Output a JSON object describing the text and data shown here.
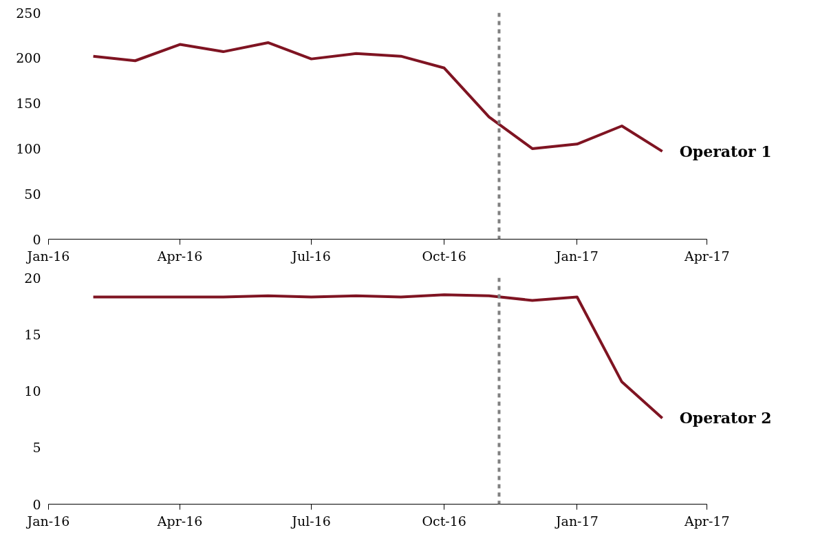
{
  "chart_data": [
    {
      "type": "line",
      "x": [
        "2016-02",
        "2016-03",
        "2016-04",
        "2016-05",
        "2016-06",
        "2016-07",
        "2016-08",
        "2016-09",
        "2016-10",
        "2016-11",
        "2016-12",
        "2017-01",
        "2017-02",
        "2017-03"
      ],
      "series": [
        {
          "name": "Operator 1",
          "color": "#7f1422",
          "values": [
            202,
            197,
            215,
            207,
            217,
            199,
            205,
            202,
            189,
            135,
            100,
            105,
            125,
            97
          ]
        }
      ],
      "xlim": [
        "2016-01-01",
        "2017-04-01"
      ],
      "xticks": [
        {
          "value": "2016-01-01",
          "label": "Jan-16"
        },
        {
          "value": "2016-04-01",
          "label": "Apr-16"
        },
        {
          "value": "2016-07-01",
          "label": "Jul-16"
        },
        {
          "value": "2016-10-01",
          "label": "Oct-16"
        },
        {
          "value": "2017-01-01",
          "label": "Jan-17"
        },
        {
          "value": "2017-04-01",
          "label": "Apr-17"
        }
      ],
      "ylim": [
        0,
        250
      ],
      "yticks": [
        0,
        50,
        100,
        150,
        200,
        250
      ],
      "ref_lines": [
        {
          "axis": "x",
          "value": "2016-11-08",
          "color": "#808080",
          "line_style": "dashed"
        }
      ],
      "grid": false,
      "line_style": "solid",
      "marker": "none"
    },
    {
      "type": "line",
      "x": [
        "2016-02",
        "2016-03",
        "2016-04",
        "2016-05",
        "2016-06",
        "2016-07",
        "2016-08",
        "2016-09",
        "2016-10",
        "2016-11",
        "2016-12",
        "2017-01",
        "2017-02",
        "2017-03"
      ],
      "series": [
        {
          "name": "Operator 2",
          "color": "#7f1422",
          "values": [
            18.3,
            18.3,
            18.3,
            18.3,
            18.4,
            18.3,
            18.4,
            18.3,
            18.5,
            18.4,
            18.0,
            18.3,
            10.8,
            7.6
          ]
        }
      ],
      "xlim": [
        "2016-01-01",
        "2017-04-01"
      ],
      "xticks": [
        {
          "value": "2016-01-01",
          "label": "Jan-16"
        },
        {
          "value": "2016-04-01",
          "label": "Apr-16"
        },
        {
          "value": "2016-07-01",
          "label": "Jul-16"
        },
        {
          "value": "2016-10-01",
          "label": "Oct-16"
        },
        {
          "value": "2017-01-01",
          "label": "Jan-17"
        },
        {
          "value": "2017-04-01",
          "label": "Apr-17"
        }
      ],
      "ylim": [
        0,
        20
      ],
      "yticks": [
        0,
        5,
        10,
        15,
        20
      ],
      "ref_lines": [
        {
          "axis": "x",
          "value": "2016-11-08",
          "color": "#808080",
          "line_style": "dashed"
        }
      ],
      "grid": false,
      "line_style": "solid",
      "marker": "none"
    }
  ]
}
